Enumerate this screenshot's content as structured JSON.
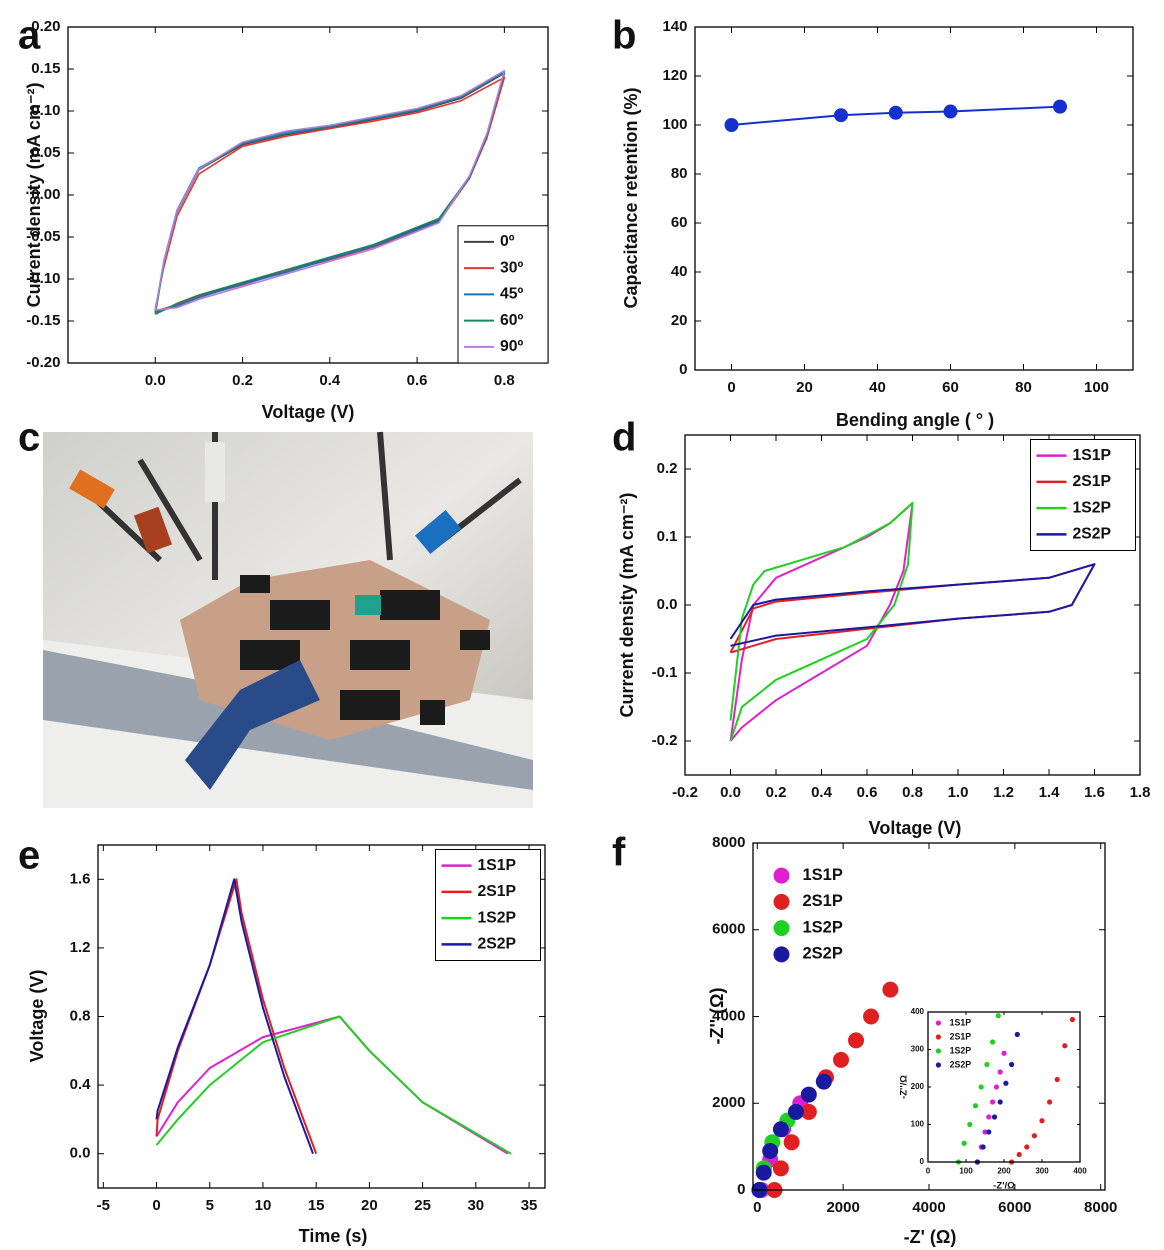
{
  "chart_data": [
    {
      "type": "line",
      "label": "a",
      "xlabel": "Voltage (V)",
      "ylabel": "Current density (mA cm⁻²)",
      "xlim": [
        -0.2,
        0.9
      ],
      "ylim": [
        -0.2,
        0.2
      ],
      "xticks": [
        {
          "value": 0,
          "label": "0.0"
        },
        0.2,
        0.4,
        0.6,
        0.8
      ],
      "yticks": [
        {
          "value": -0.2,
          "label": "-0.20"
        },
        -0.15,
        {
          "value": -0.1,
          "label": "-0.10"
        },
        -0.05,
        {
          "value": 0,
          "label": "0.00"
        },
        0.05,
        {
          "value": 0.1,
          "label": "0.10"
        },
        0.15,
        {
          "value": 0.2,
          "label": "0.20"
        }
      ],
      "legend": "lower right",
      "x": [
        0,
        0.02,
        0.05,
        0.1,
        0.2,
        0.3,
        0.4,
        0.5,
        0.6,
        0.7,
        0.8,
        0.76,
        0.72,
        0.65,
        0.5,
        0.4,
        0.3,
        0.2,
        0.1,
        0.05,
        0
      ],
      "series": [
        {
          "name": "0º",
          "color": "#404040",
          "values": [
            -0.14,
            -0.08,
            -0.02,
            0.03,
            0.06,
            0.072,
            0.08,
            0.09,
            0.1,
            0.115,
            0.145,
            0.07,
            0.02,
            -0.03,
            -0.06,
            -0.075,
            -0.09,
            -0.105,
            -0.12,
            -0.13,
            -0.14
          ]
        },
        {
          "name": "30º",
          "color": "#e8322c",
          "values": [
            -0.135,
            -0.085,
            -0.025,
            0.025,
            0.058,
            0.07,
            0.079,
            0.088,
            0.098,
            0.112,
            0.14,
            0.068,
            0.02,
            -0.032,
            -0.062,
            -0.077,
            -0.091,
            -0.107,
            -0.121,
            -0.131,
            -0.138
          ]
        },
        {
          "name": "45º",
          "color": "#1f6fbf",
          "values": [
            -0.138,
            -0.078,
            -0.018,
            0.032,
            0.061,
            0.073,
            0.081,
            0.091,
            0.101,
            0.116,
            0.146,
            0.071,
            0.021,
            -0.031,
            -0.061,
            -0.076,
            -0.092,
            -0.106,
            -0.122,
            -0.132,
            -0.14
          ]
        },
        {
          "name": "60º",
          "color": "#1a8a5a",
          "values": [
            -0.142,
            -0.08,
            -0.02,
            0.03,
            0.062,
            0.075,
            0.082,
            0.092,
            0.102,
            0.117,
            0.147,
            0.072,
            0.022,
            -0.028,
            -0.059,
            -0.074,
            -0.089,
            -0.104,
            -0.119,
            -0.129,
            -0.142
          ]
        },
        {
          "name": "90º",
          "color": "#b07fe0",
          "values": [
            -0.137,
            -0.079,
            -0.019,
            0.031,
            0.063,
            0.076,
            0.083,
            0.093,
            0.103,
            0.118,
            0.148,
            0.073,
            0.023,
            -0.033,
            -0.064,
            -0.079,
            -0.094,
            -0.109,
            -0.124,
            -0.134,
            -0.137
          ]
        }
      ]
    },
    {
      "type": "line",
      "marker": "circle",
      "label": "b",
      "xlabel": "Bending angle ( ° )",
      "ylabel": "Capacitance retention (%)",
      "xlim": [
        -10,
        110
      ],
      "ylim": [
        0,
        140
      ],
      "xticks": [
        0,
        20,
        40,
        60,
        80,
        100
      ],
      "yticks": [
        0,
        20,
        40,
        60,
        80,
        100,
        120,
        140
      ],
      "x": [
        0,
        30,
        45,
        60,
        90
      ],
      "series": [
        {
          "color": "#1530d0",
          "values": [
            100,
            104,
            105,
            105.5,
            107.5
          ]
        }
      ]
    },
    {
      "type": "line",
      "label": "d",
      "xlabel": "Voltage (V)",
      "ylabel": "Current density (mA cm⁻²)",
      "xlim": [
        -0.2,
        1.8
      ],
      "ylim": [
        -0.25,
        0.25
      ],
      "xticks": [
        -0.2,
        {
          "value": 0,
          "label": "0.0"
        },
        0.2,
        0.4,
        0.6,
        0.8,
        {
          "value": 1,
          "label": "1.0"
        },
        1.2,
        1.4,
        1.6,
        1.8
      ],
      "yticks": [
        -0.2,
        -0.1,
        {
          "value": 0,
          "label": "0.0"
        },
        0.1,
        0.2
      ],
      "legend": "upper right",
      "series": [
        {
          "name": "1S1P",
          "color": "#e020d0",
          "x": [
            0,
            0.05,
            0.1,
            0.2,
            0.4,
            0.6,
            0.7,
            0.8,
            0.76,
            0.7,
            0.6,
            0.4,
            0.2,
            0.05,
            0
          ],
          "values": [
            -0.2,
            -0.08,
            0,
            0.04,
            0.07,
            0.1,
            0.12,
            0.15,
            0.05,
            0,
            -0.06,
            -0.1,
            -0.14,
            -0.18,
            -0.2
          ]
        },
        {
          "name": "2S1P",
          "color": "#e02020",
          "x": [
            0,
            0.1,
            0.2,
            0.6,
            1.0,
            1.4,
            1.6,
            1.5,
            1.4,
            1.0,
            0.6,
            0.2,
            0
          ],
          "values": [
            -0.07,
            -0.005,
            0.005,
            0.018,
            0.03,
            0.04,
            0.06,
            0.0,
            -0.01,
            -0.02,
            -0.035,
            -0.05,
            -0.07
          ]
        },
        {
          "name": "1S2P",
          "color": "#20d020",
          "x": [
            0,
            0.05,
            0.1,
            0.15,
            0.3,
            0.5,
            0.7,
            0.8,
            0.78,
            0.72,
            0.6,
            0.4,
            0.2,
            0.05,
            0
          ],
          "values": [
            -0.17,
            -0.02,
            0.03,
            0.05,
            0.065,
            0.085,
            0.12,
            0.15,
            0.06,
            0,
            -0.05,
            -0.08,
            -0.11,
            -0.15,
            -0.2
          ]
        },
        {
          "name": "2S2P",
          "color": "#1a1aa0",
          "x": [
            0,
            0.1,
            0.2,
            0.6,
            1.0,
            1.4,
            1.6,
            1.5,
            1.4,
            1.0,
            0.6,
            0.2,
            0
          ],
          "values": [
            -0.05,
            0,
            0.008,
            0.02,
            0.03,
            0.04,
            0.06,
            0,
            -0.01,
            -0.02,
            -0.033,
            -0.045,
            -0.06
          ]
        }
      ]
    },
    {
      "type": "line",
      "label": "e",
      "xlabel": "Time (s)",
      "ylabel": "Voltage (V)",
      "xlim": [
        -5.5,
        36.5
      ],
      "ylim": [
        -0.2,
        1.8
      ],
      "xticks": [
        -5,
        0,
        5,
        10,
        15,
        20,
        25,
        30,
        35
      ],
      "yticks": [
        {
          "value": 0,
          "label": "0.0"
        },
        0.4,
        0.8,
        1.2,
        1.6
      ],
      "legend": "upper right",
      "series": [
        {
          "name": "1S1P",
          "color": "#e020d0",
          "x": [
            0,
            2,
            5,
            10,
            17.2,
            20,
            25,
            33
          ],
          "values": [
            0.1,
            0.3,
            0.5,
            0.68,
            0.8,
            0.6,
            0.3,
            0
          ]
        },
        {
          "name": "2S1P",
          "color": "#e02020",
          "x": [
            0,
            0.1,
            2,
            5,
            7.5,
            8,
            10,
            12,
            15
          ],
          "values": [
            0.1,
            0.2,
            0.6,
            1.1,
            1.6,
            1.4,
            0.9,
            0.5,
            0
          ]
        },
        {
          "name": "1S2P",
          "color": "#20d020",
          "x": [
            0,
            2,
            5,
            10,
            17.2,
            20,
            25,
            33.3
          ],
          "values": [
            0.05,
            0.2,
            0.4,
            0.65,
            0.8,
            0.6,
            0.3,
            0
          ]
        },
        {
          "name": "2S2P",
          "color": "#1a1aa0",
          "x": [
            0,
            0.1,
            2,
            5,
            7.3,
            8,
            10,
            12,
            14.7
          ],
          "values": [
            0.2,
            0.25,
            0.62,
            1.1,
            1.6,
            1.35,
            0.85,
            0.45,
            0
          ]
        }
      ]
    },
    {
      "type": "scatter",
      "label": "f",
      "xlabel": "-Z' (Ω)",
      "ylabel": "-Z'' (Ω)",
      "xlim": [
        -100,
        8100
      ],
      "ylim": [
        0,
        8000
      ],
      "xticks": [
        0,
        2000,
        4000,
        6000,
        8000
      ],
      "yticks": [
        0,
        2000,
        4000,
        6000,
        8000
      ],
      "legend": "upper left",
      "series": [
        {
          "name": "1S1P",
          "color": "#e020d0",
          "x": [
            100,
            300,
            600,
            1000
          ],
          "values": [
            0,
            700,
            1400,
            2000
          ]
        },
        {
          "name": "2S1P",
          "color": "#e02020",
          "x": [
            400,
            550,
            800,
            1200,
            1600,
            1950,
            2300,
            2650,
            3100
          ],
          "values": [
            0,
            500,
            1100,
            1800,
            2600,
            3000,
            3450,
            4000,
            4620
          ]
        },
        {
          "name": "1S2P",
          "color": "#20d020",
          "x": [
            50,
            150,
            350,
            700
          ],
          "values": [
            0,
            500,
            1100,
            1600
          ]
        },
        {
          "name": "2S2P",
          "color": "#1a1aa0",
          "x": [
            50,
            150,
            300,
            550,
            900,
            1200,
            1550
          ],
          "values": [
            0,
            400,
            900,
            1400,
            1800,
            2200,
            2500
          ]
        }
      ]
    },
    {
      "type": "scatter",
      "xlabel": "-Z'/Ω",
      "ylabel": "-Z''/Ω",
      "xlim": [
        0,
        400
      ],
      "ylim": [
        0,
        400
      ],
      "xticks": [
        0,
        100,
        200,
        300,
        400
      ],
      "yticks": [
        0,
        100,
        200,
        300,
        400
      ],
      "legend": "upper left",
      "series": [
        {
          "name": "1S1P",
          "color": "#e020d0",
          "x": [
            130,
            140,
            150,
            160,
            170,
            180,
            190,
            200
          ],
          "values": [
            0,
            40,
            80,
            120,
            160,
            200,
            240,
            290
          ]
        },
        {
          "name": "2S1P",
          "color": "#e02020",
          "x": [
            220,
            240,
            260,
            280,
            300,
            320,
            340,
            360,
            380
          ],
          "values": [
            0,
            20,
            40,
            70,
            110,
            160,
            220,
            310,
            380
          ]
        },
        {
          "name": "1S2P",
          "color": "#20d020",
          "x": [
            80,
            95,
            110,
            125,
            140,
            155,
            170,
            185
          ],
          "values": [
            0,
            50,
            100,
            150,
            200,
            260,
            320,
            390
          ]
        },
        {
          "name": "2S2P",
          "color": "#1a1aa0",
          "x": [
            130,
            145,
            160,
            175,
            190,
            205,
            220,
            235
          ],
          "values": [
            0,
            40,
            80,
            120,
            160,
            210,
            260,
            340
          ]
        }
      ]
    }
  ],
  "photo_panel": {
    "label": "c"
  }
}
